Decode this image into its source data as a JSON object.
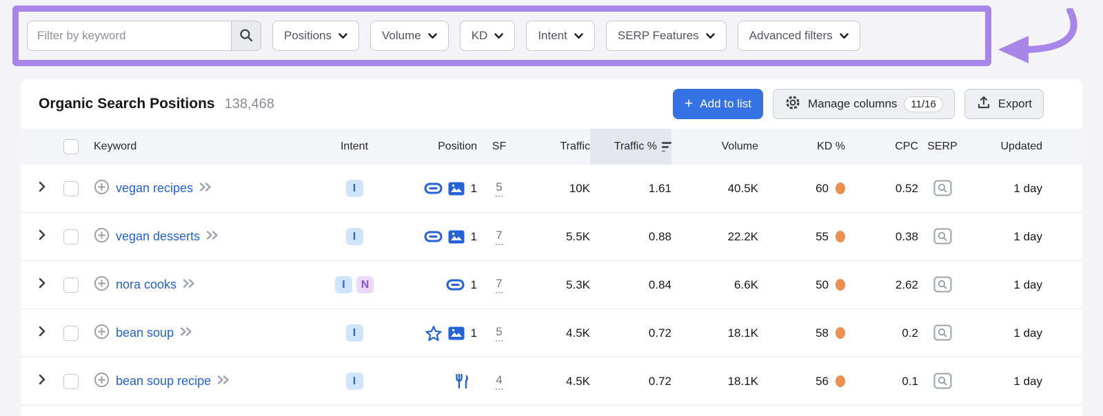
{
  "filter_bar": {
    "search": {
      "placeholder": "Filter by keyword"
    },
    "dropdowns": [
      {
        "label": "Positions"
      },
      {
        "label": "Volume"
      },
      {
        "label": "KD"
      },
      {
        "label": "Intent"
      },
      {
        "label": "SERP Features"
      },
      {
        "label": "Advanced filters"
      }
    ]
  },
  "panel": {
    "title": "Organic Search Positions",
    "total_count": "138,468",
    "add_to_list_label": "Add to list",
    "manage_columns_label": "Manage columns",
    "columns_badge": "11/16",
    "export_label": "Export"
  },
  "table": {
    "columns": {
      "keyword": "Keyword",
      "intent": "Intent",
      "position": "Position",
      "sf": "SF",
      "traffic": "Traffic",
      "traffic_pct": "Traffic %",
      "volume": "Volume",
      "kd": "KD %",
      "cpc": "CPC",
      "serp": "SERP",
      "updated": "Updated"
    },
    "sorted_column": "Traffic %",
    "sort_direction": "descending",
    "rows": [
      {
        "keyword": "vegan recipes",
        "intents": [
          "I"
        ],
        "position_icons": [
          "link-icon",
          "image-icon"
        ],
        "position": "1",
        "sf": "5",
        "traffic": "10K",
        "traffic_pct": "1.61",
        "volume": "40.5K",
        "kd": "60",
        "cpc": "0.52",
        "updated": "1 day"
      },
      {
        "keyword": "vegan desserts",
        "intents": [
          "I"
        ],
        "position_icons": [
          "link-icon",
          "image-icon"
        ],
        "position": "1",
        "sf": "7",
        "traffic": "5.5K",
        "traffic_pct": "0.88",
        "volume": "22.2K",
        "kd": "55",
        "cpc": "0.38",
        "updated": "1 day"
      },
      {
        "keyword": "nora cooks",
        "intents": [
          "I",
          "N"
        ],
        "position_icons": [
          "link-icon"
        ],
        "position": "1",
        "sf": "7",
        "traffic": "5.3K",
        "traffic_pct": "0.84",
        "volume": "6.6K",
        "kd": "50",
        "cpc": "2.62",
        "updated": "1 day"
      },
      {
        "keyword": "bean soup",
        "intents": [
          "I"
        ],
        "position_icons": [
          "star-icon",
          "image-icon"
        ],
        "position": "1",
        "sf": "5",
        "traffic": "4.5K",
        "traffic_pct": "0.72",
        "volume": "18.1K",
        "kd": "58",
        "cpc": "0.2",
        "updated": "1 day"
      },
      {
        "keyword": "bean soup recipe",
        "intents": [
          "I"
        ],
        "position_icons": [
          "fork-knife-icon"
        ],
        "position": "",
        "sf": "4",
        "traffic": "4.5K",
        "traffic_pct": "0.72",
        "volume": "18.1K",
        "kd": "56",
        "cpc": "0.1",
        "updated": "1 day"
      }
    ]
  },
  "colors": {
    "highlight_purple": "#a886e9",
    "accent_blue": "#3572e3",
    "link_blue": "#2362d8",
    "kd_dot_orange": "#ee8f52",
    "header_bg": "#f4f5f9",
    "sorted_header_bg": "#e5e7ee",
    "intent_informational": {
      "label": "I",
      "bg": "#cfe5fb",
      "fg": "#2a65d9"
    },
    "intent_navigational": {
      "label": "N",
      "bg": "#ead9fa",
      "fg": "#8b4fd6"
    }
  }
}
